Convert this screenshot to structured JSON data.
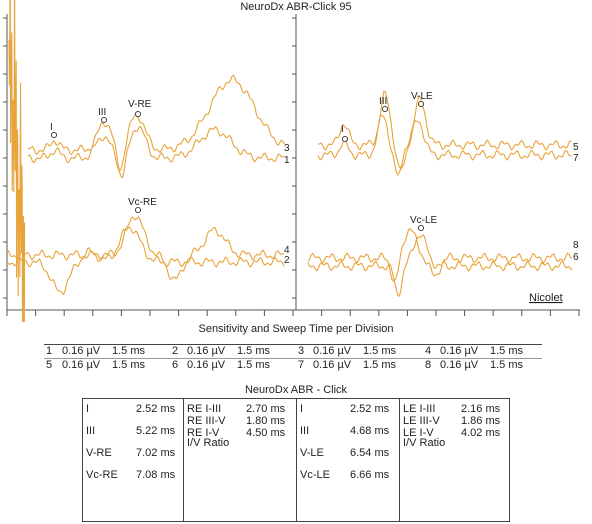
{
  "title": "NeuroDx ABR-Click 95",
  "watermark": "Nicolet",
  "trace_color": "#e8a33a",
  "left_panel": {
    "peak_labels": [
      "I",
      "III",
      "V-RE",
      "Vc-RE"
    ],
    "trace_numbers": [
      "3",
      "1",
      "4",
      "2"
    ]
  },
  "right_panel": {
    "peak_labels": [
      "I",
      "III",
      "V-LE",
      "Vc-LE"
    ],
    "trace_numbers": [
      "5",
      "7",
      "8",
      "6"
    ]
  },
  "sensitivity": {
    "caption": "Sensitivity and Sweep Time per Division",
    "rows": [
      [
        {
          "ch": "1",
          "sens": "0.16 µV",
          "time": "1.5 ms"
        },
        {
          "ch": "2",
          "sens": "0.16 µV",
          "time": "1.5 ms"
        },
        {
          "ch": "3",
          "sens": "0.16 µV",
          "time": "1.5 ms"
        },
        {
          "ch": "4",
          "sens": "0.16 µV",
          "time": "1.5 ms"
        }
      ],
      [
        {
          "ch": "5",
          "sens": "0.16 µV",
          "time": "1.5 ms"
        },
        {
          "ch": "6",
          "sens": "0.16 µV",
          "time": "1.5 ms"
        },
        {
          "ch": "7",
          "sens": "0.16 µV",
          "time": "1.5 ms"
        },
        {
          "ch": "8",
          "sens": "0.16 µV",
          "time": "1.5 ms"
        }
      ]
    ]
  },
  "results": {
    "title": "NeuroDx ABR - Click",
    "re_latencies": [
      {
        "label": "I",
        "value": "2.52 ms"
      },
      {
        "label": "III",
        "value": "5.22 ms"
      },
      {
        "label": "V-RE",
        "value": "7.02 ms"
      },
      {
        "label": "Vc-RE",
        "value": "7.08 ms"
      }
    ],
    "re_intervals": [
      {
        "label": "RE I-III",
        "value": "2.70 ms"
      },
      {
        "label": "RE III-V",
        "value": "1.80 ms"
      },
      {
        "label": "RE I-V",
        "value": "4.50 ms"
      },
      {
        "label": "I/V Ratio",
        "value": ""
      }
    ],
    "le_latencies": [
      {
        "label": "I",
        "value": "2.52 ms"
      },
      {
        "label": "III",
        "value": "4.68 ms"
      },
      {
        "label": "V-LE",
        "value": "6.54 ms"
      },
      {
        "label": "Vc-LE",
        "value": "6.66 ms"
      }
    ],
    "le_intervals": [
      {
        "label": "LE I-III",
        "value": "2.16 ms"
      },
      {
        "label": "LE III-V",
        "value": "1.86 ms"
      },
      {
        "label": "LE I-V",
        "value": "4.02 ms"
      },
      {
        "label": "I/V Ratio",
        "value": ""
      }
    ]
  }
}
